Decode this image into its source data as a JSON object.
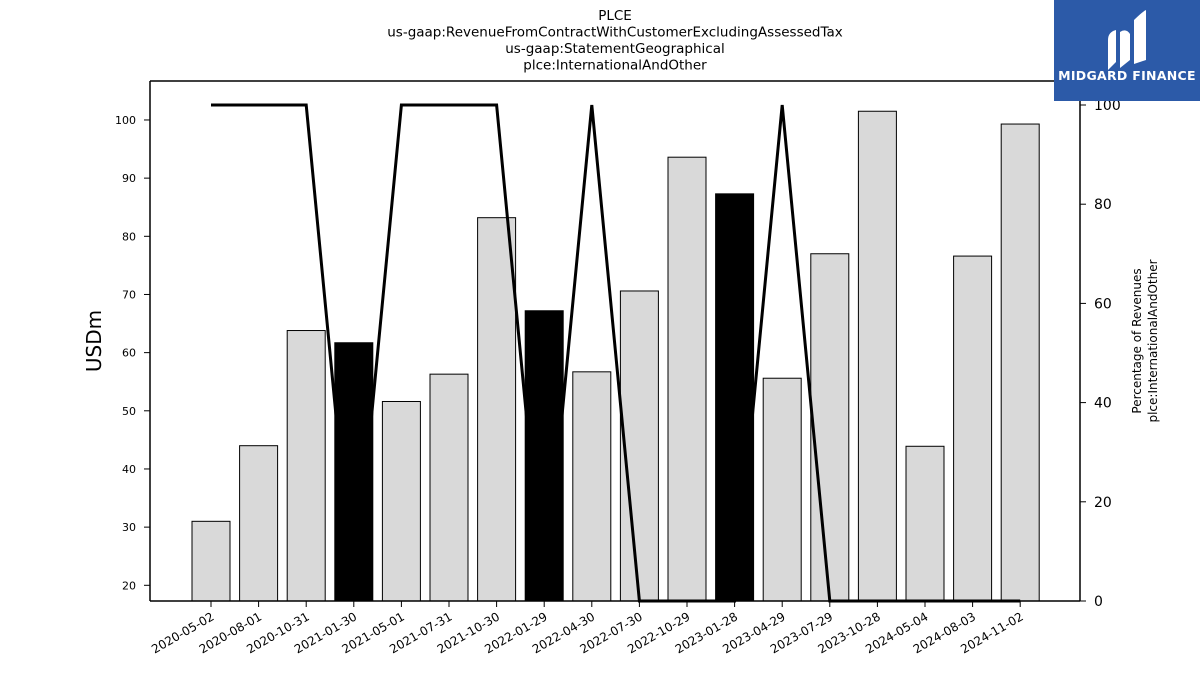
{
  "chart_data": {
    "type": "bar",
    "title_lines": [
      "PLCE",
      "us-gaap:RevenueFromContractWithCustomerExcludingAssessedTax",
      "us-gaap:StatementGeographical",
      "plce:InternationalAndOther"
    ],
    "ylabel": "USDm",
    "y2label_lines": [
      "Percentage of Revenues",
      "plce:InternationalAndOther"
    ],
    "categories": [
      "2020-05-02",
      "2020-08-01",
      "2020-10-31",
      "2021-01-30",
      "2021-05-01",
      "2021-07-31",
      "2021-10-30",
      "2022-01-29",
      "2022-04-30",
      "2022-07-30",
      "2022-10-29",
      "2023-01-28",
      "2023-04-29",
      "2023-07-29",
      "2023-10-28",
      "2024-05-04",
      "2024-08-03",
      "2024-11-02"
    ],
    "series": [
      {
        "type": "bar",
        "values": [
          31.0,
          44.0,
          63.8,
          61.7,
          51.6,
          56.3,
          83.2,
          67.2,
          56.7,
          70.6,
          93.6,
          87.3,
          55.6,
          77.0,
          101.5,
          43.9,
          76.6,
          99.3
        ]
      },
      {
        "type": "line",
        "axis": "right",
        "values": [
          100,
          100,
          100,
          0,
          100,
          100,
          100,
          0,
          100,
          0,
          0,
          0,
          100,
          0,
          0,
          0,
          0,
          0
        ]
      }
    ],
    "highlighted_bars": [
      "2021-01-30",
      "2022-01-29",
      "2023-01-28"
    ],
    "ylim": [
      17.3,
      106.7
    ],
    "y2lim": [
      0,
      100
    ],
    "yticks": [
      20,
      30,
      40,
      50,
      60,
      70,
      80,
      90,
      100
    ],
    "y2ticks": [
      0,
      20,
      40,
      60,
      80,
      100
    ],
    "colors": {
      "bar": "#d9d9d9",
      "bar_highlight": "#000000",
      "line": "#000000",
      "edge": "#000000"
    }
  },
  "logo": {
    "text": "MIDGARD FINANCE",
    "background": "#2c5aa8"
  }
}
